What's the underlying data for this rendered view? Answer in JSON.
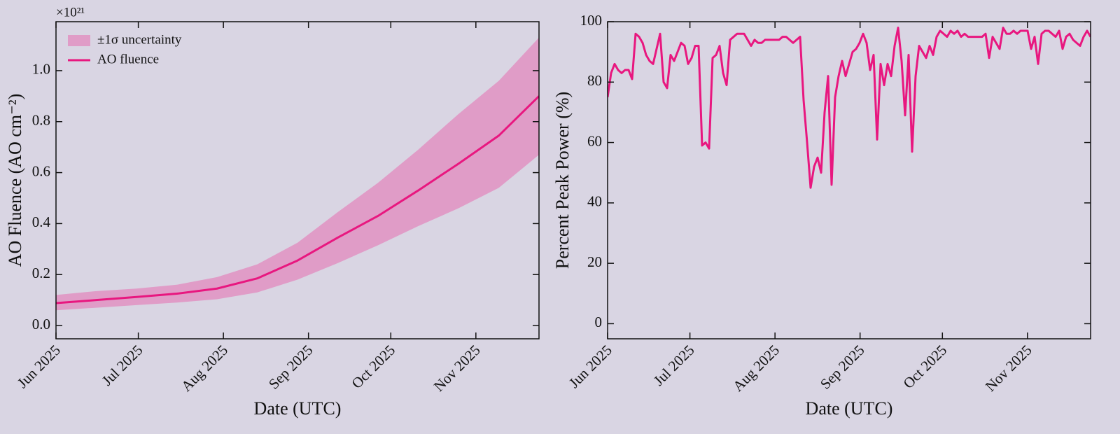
{
  "chart_data": [
    {
      "type": "line",
      "x_label": "Date (UTC)",
      "y_label": "AO Fluence (AO cm⁻²)",
      "y_offset_text": "×10²¹",
      "xlim": [
        "2025-06-01",
        "2025-11-24"
      ],
      "xticks": [
        {
          "value": "2025-06-01",
          "label": "Jun 2025"
        },
        {
          "value": "2025-07-01",
          "label": "Jul 2025"
        },
        {
          "value": "2025-08-01",
          "label": "Aug 2025"
        },
        {
          "value": "2025-09-01",
          "label": "Sep 2025"
        },
        {
          "value": "2025-10-01",
          "label": "Oct 2025"
        },
        {
          "value": "2025-11-01",
          "label": "Nov 2025"
        }
      ],
      "ylim": [
        -0.052,
        1.192
      ],
      "yticks": [
        {
          "value": 0,
          "label": "0.0"
        },
        0.2,
        0.4,
        0.6,
        0.8,
        {
          "value": 1,
          "label": "1.0"
        }
      ],
      "band": {
        "name": "±1σ uncertainty",
        "color": "#e09cc7",
        "lower": [
          0.06,
          0.07,
          0.08,
          0.09,
          0.103,
          0.13,
          0.18,
          0.245,
          0.315,
          0.39,
          0.46,
          0.54,
          0.67
        ],
        "upper": [
          0.12,
          0.135,
          0.145,
          0.16,
          0.19,
          0.24,
          0.325,
          0.445,
          0.56,
          0.69,
          0.83,
          0.96,
          1.13
        ]
      },
      "series": [
        {
          "name": "AO fluence",
          "color": "#e8177f",
          "values": [
            0.088,
            0.1,
            0.112,
            0.125,
            0.145,
            0.185,
            0.255,
            0.345,
            0.43,
            0.53,
            0.635,
            0.745,
            0.9
          ]
        }
      ],
      "legend": "upper left"
    },
    {
      "type": "line",
      "x_label": "Date (UTC)",
      "y_label": "Percent Peak Power (%)",
      "xlim": [
        "2025-06-01",
        "2025-11-24"
      ],
      "xticks": [
        {
          "value": "2025-06-01",
          "label": "Jun 2025"
        },
        {
          "value": "2025-07-01",
          "label": "Jul 2025"
        },
        {
          "value": "2025-08-01",
          "label": "Aug 2025"
        },
        {
          "value": "2025-09-01",
          "label": "Sep 2025"
        },
        {
          "value": "2025-10-01",
          "label": "Oct 2025"
        },
        {
          "value": "2025-11-01",
          "label": "Nov 2025"
        }
      ],
      "ylim": [
        -5,
        100
      ],
      "yticks": [
        0,
        20,
        40,
        60,
        80,
        100
      ],
      "series": [
        {
          "color": "#e8177f",
          "values": [
            75,
            83,
            86,
            84,
            83,
            84,
            84,
            81,
            96,
            95,
            93,
            89,
            87,
            86,
            91,
            96,
            80,
            78,
            89,
            87,
            90,
            93,
            92,
            86,
            88,
            92,
            92,
            59,
            60,
            58,
            88,
            89,
            92,
            83,
            79,
            94,
            95,
            96,
            96,
            96,
            94,
            92,
            94,
            93,
            93,
            94,
            94,
            94,
            94,
            94,
            95,
            95,
            94,
            93,
            94,
            95,
            74,
            60,
            45,
            52,
            55,
            50,
            70,
            82,
            46,
            75,
            82,
            87,
            82,
            86,
            90,
            91,
            93,
            96,
            93,
            84,
            89,
            61,
            86,
            79,
            86,
            82,
            92,
            98,
            87,
            69,
            89,
            57,
            82,
            92,
            90,
            88,
            92,
            89,
            95,
            97,
            96,
            95,
            97,
            96,
            97,
            95,
            96,
            95,
            95,
            95,
            95,
            95,
            96,
            88,
            95,
            93,
            91,
            98,
            96,
            96,
            97,
            96,
            97,
            97,
            97,
            91,
            95,
            86,
            96,
            97,
            97,
            96,
            95,
            97,
            91,
            95,
            96,
            94,
            93,
            92,
            95,
            97,
            95
          ]
        }
      ]
    }
  ]
}
